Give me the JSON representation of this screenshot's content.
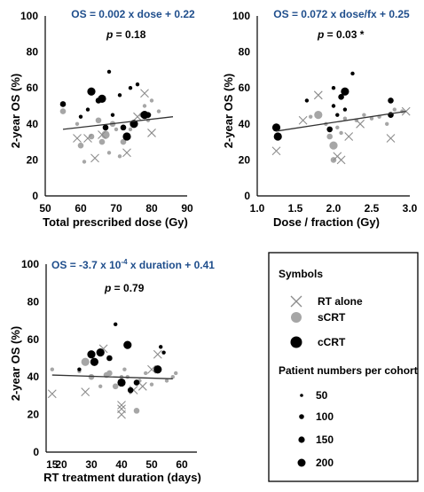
{
  "chart_data": [
    {
      "type": "scatter",
      "equation": "OS = 0.002 x dose + 0.22",
      "p_value": "p = 0.18",
      "p_sig": "",
      "xlabel": "Total prescribed dose (Gy)",
      "ylabel": "2-year OS (%)",
      "xlim": [
        50,
        90
      ],
      "ylim": [
        0,
        100
      ],
      "xticks": [
        "50",
        "60",
        "70",
        "80",
        "90"
      ],
      "yticks": [
        "0",
        "20",
        "40",
        "60",
        "80",
        "100"
      ],
      "trendline": [
        [
          55,
          37
        ],
        [
          86,
          44
        ]
      ],
      "rt_alone": [
        [
          59,
          32
        ],
        [
          62,
          32
        ],
        [
          64,
          21
        ],
        [
          66,
          34
        ],
        [
          73,
          24
        ],
        [
          76,
          44
        ],
        [
          78,
          57
        ],
        [
          80,
          35
        ]
      ],
      "scrt": [
        [
          55,
          47
        ],
        [
          59,
          40
        ],
        [
          60,
          28
        ],
        [
          61,
          19
        ],
        [
          63,
          33
        ],
        [
          65,
          42
        ],
        [
          66,
          30
        ],
        [
          67,
          34
        ],
        [
          68,
          24
        ],
        [
          69,
          40
        ],
        [
          70,
          37
        ],
        [
          71,
          22
        ],
        [
          72,
          30
        ],
        [
          74,
          37
        ],
        [
          75,
          40
        ],
        [
          77,
          45
        ],
        [
          78,
          50
        ],
        [
          79,
          42
        ],
        [
          80,
          53
        ],
        [
          82,
          47
        ]
      ],
      "ccrt": [
        [
          55,
          51
        ],
        [
          60,
          44
        ],
        [
          62,
          48
        ],
        [
          63,
          58
        ],
        [
          65,
          53
        ],
        [
          66,
          54
        ],
        [
          67,
          38
        ],
        [
          68,
          69
        ],
        [
          69,
          45
        ],
        [
          71,
          56
        ],
        [
          72,
          38
        ],
        [
          73,
          33
        ],
        [
          74,
          60
        ],
        [
          75,
          40
        ],
        [
          76,
          62
        ],
        [
          78,
          45
        ],
        [
          79,
          45
        ]
      ],
      "ccrt_sizes": [
        2,
        1,
        1,
        3,
        2,
        3,
        2,
        1,
        1,
        1,
        2,
        3,
        1,
        3,
        1,
        3,
        2
      ],
      "scrt_sizes": [
        2,
        1,
        2,
        1,
        2,
        2,
        2,
        3,
        1,
        2,
        1,
        1,
        2,
        1,
        2,
        1,
        1,
        1,
        1,
        1
      ]
    },
    {
      "type": "scatter",
      "equation": "OS = 0.072 x dose/fx + 0.25",
      "p_value": "p = 0.03",
      "p_sig": "*",
      "xlabel": "Dose / fraction (Gy)",
      "ylabel": "2-year OS (%)",
      "xlim": [
        1.0,
        3.0
      ],
      "ylim": [
        0,
        100
      ],
      "xticks": [
        "1.0",
        "1.5",
        "2.0",
        "2.5",
        "3.0"
      ],
      "yticks": [
        "0",
        "20",
        "40",
        "60",
        "80",
        "100"
      ],
      "trendline": [
        [
          1.25,
          36
        ],
        [
          2.95,
          47
        ]
      ],
      "rt_alone": [
        [
          1.25,
          25
        ],
        [
          1.6,
          42
        ],
        [
          1.8,
          56
        ],
        [
          2.05,
          22
        ],
        [
          2.1,
          20
        ],
        [
          2.2,
          33
        ],
        [
          2.35,
          40
        ],
        [
          2.75,
          32
        ],
        [
          2.95,
          47
        ]
      ],
      "scrt": [
        [
          1.7,
          44
        ],
        [
          1.8,
          45
        ],
        [
          1.9,
          40
        ],
        [
          1.95,
          33
        ],
        [
          2.0,
          28
        ],
        [
          2.0,
          20
        ],
        [
          2.05,
          38
        ],
        [
          2.1,
          35
        ],
        [
          2.15,
          43
        ],
        [
          2.3,
          42
        ],
        [
          2.4,
          45
        ],
        [
          2.5,
          43
        ],
        [
          2.6,
          44
        ],
        [
          2.7,
          40
        ],
        [
          2.8,
          48
        ],
        [
          2.9,
          47
        ],
        [
          2.0,
          50
        ]
      ],
      "ccrt": [
        [
          1.25,
          38
        ],
        [
          1.27,
          33
        ],
        [
          1.65,
          53
        ],
        [
          1.95,
          37
        ],
        [
          2.0,
          50
        ],
        [
          2.05,
          45
        ],
        [
          2.1,
          55
        ],
        [
          2.15,
          58
        ],
        [
          2.15,
          48
        ],
        [
          2.25,
          68
        ],
        [
          2.75,
          53
        ],
        [
          2.75,
          45
        ],
        [
          2.0,
          60
        ]
      ],
      "ccrt_sizes": [
        3,
        3,
        1,
        2,
        1,
        1,
        2,
        3,
        1,
        1,
        2,
        2,
        1
      ],
      "scrt_sizes": [
        1,
        3,
        1,
        2,
        3,
        2,
        1,
        1,
        1,
        1,
        1,
        1,
        1,
        1,
        1,
        1,
        1
      ]
    },
    {
      "type": "scatter",
      "equation_pre": "OS = -3.7 x 10",
      "equation_sup": "-4",
      "equation_post": " x duration + 0.41",
      "p_value": "p = 0.79",
      "p_sig": "",
      "xlabel": "RT treatment duration (days)",
      "ylabel": "2-year OS (%)",
      "xlim": [
        15,
        65
      ],
      "ylim": [
        0,
        100
      ],
      "xticks": [
        "15",
        "20",
        "30",
        "40",
        "50",
        "60"
      ],
      "yticks": [
        "0",
        "20",
        "40",
        "60",
        "80",
        "100"
      ],
      "trendline": [
        [
          17,
          41
        ],
        [
          57,
          39
        ]
      ],
      "rt_alone": [
        [
          17,
          31
        ],
        [
          28,
          32
        ],
        [
          34,
          55
        ],
        [
          40,
          25
        ],
        [
          40,
          23
        ],
        [
          40,
          20
        ],
        [
          44,
          33
        ],
        [
          47,
          35
        ],
        [
          50,
          44
        ],
        [
          52,
          52
        ]
      ],
      "scrt": [
        [
          17,
          44
        ],
        [
          26,
          43
        ],
        [
          28,
          48
        ],
        [
          30,
          40
        ],
        [
          33,
          35
        ],
        [
          35,
          41
        ],
        [
          36,
          42
        ],
        [
          38,
          35
        ],
        [
          40,
          40
        ],
        [
          41,
          44
        ],
        [
          42,
          40
        ],
        [
          43,
          32
        ],
        [
          45,
          22
        ],
        [
          46,
          38
        ],
        [
          48,
          42
        ],
        [
          50,
          36
        ],
        [
          52,
          45
        ],
        [
          55,
          38
        ],
        [
          57,
          40
        ],
        [
          58,
          42
        ]
      ],
      "ccrt": [
        [
          26,
          44
        ],
        [
          30,
          52
        ],
        [
          31,
          48
        ],
        [
          33,
          53
        ],
        [
          36,
          50
        ],
        [
          38,
          68
        ],
        [
          40,
          37
        ],
        [
          42,
          57
        ],
        [
          43,
          33
        ],
        [
          45,
          37
        ],
        [
          52,
          44
        ],
        [
          53,
          56
        ],
        [
          54,
          53
        ]
      ],
      "ccrt_sizes": [
        1,
        3,
        3,
        3,
        2,
        1,
        3,
        3,
        2,
        2,
        3,
        1,
        1
      ],
      "scrt_sizes": [
        1,
        1,
        3,
        2,
        1,
        2,
        2,
        2,
        1,
        1,
        1,
        1,
        2,
        1,
        1,
        1,
        1,
        1,
        1,
        1
      ]
    }
  ],
  "legend": {
    "symbols_title": "Symbols",
    "rt_alone_label": "RT alone",
    "scrt_label": "sCRT",
    "ccrt_label": "cCRT",
    "sizes_title": "Patient numbers per cohort",
    "size_labels": [
      "50",
      "100",
      "150",
      "200"
    ]
  },
  "colors": {
    "equation": "#1f4e8c",
    "scrt": "#a6a6a6",
    "ccrt": "#000000",
    "rt_alone": "#8c8c8c",
    "trendline": "#333333"
  }
}
